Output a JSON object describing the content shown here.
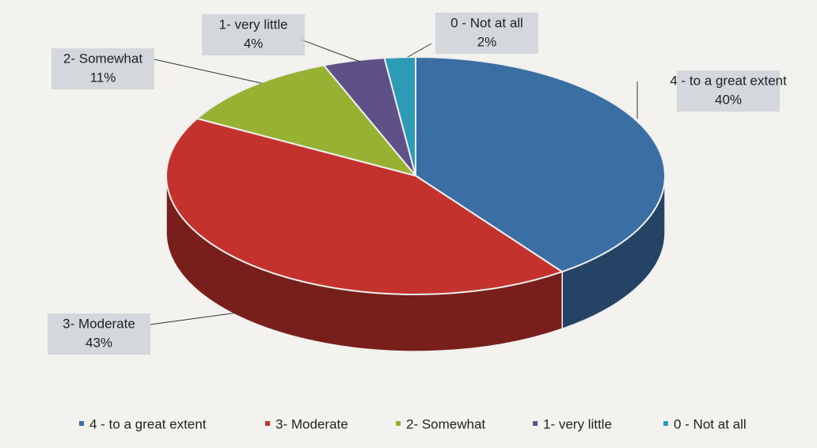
{
  "chart_data": {
    "type": "pie",
    "three_d": true,
    "categories": [
      "4 - to a great extent",
      "3- Moderate",
      "2- Somewhat",
      "1- very little",
      "0 - Not at all"
    ],
    "values": [
      40,
      43,
      11,
      4,
      2
    ],
    "value_labels": [
      "40%",
      "43%",
      "11%",
      "4%",
      "2%"
    ],
    "colors": [
      "#3b6ea3",
      "#c3322c",
      "#97b232",
      "#5d5188",
      "#2b9bb6"
    ],
    "legend": "bottom"
  }
}
